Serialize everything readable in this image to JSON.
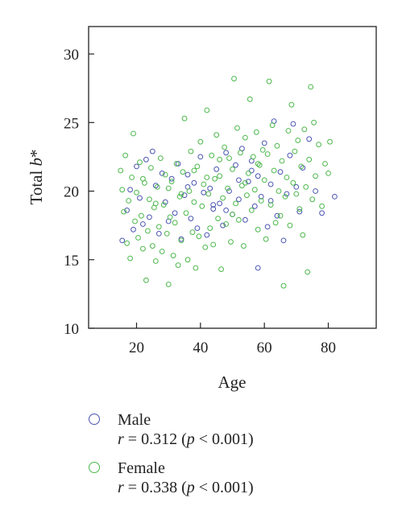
{
  "chart_data": {
    "type": "scatter",
    "xlabel": "Age",
    "ylabel": "Total b*",
    "xlim": [
      5,
      95
    ],
    "ylim": [
      10,
      32
    ],
    "xticks": [
      20,
      40,
      60,
      80
    ],
    "yticks": [
      10,
      15,
      20,
      25,
      30
    ],
    "grid": false,
    "legend_position": "bottom",
    "series": [
      {
        "name": "Male",
        "stat": "r = 0.312 (p < 0.001)",
        "color": "#4a55b0",
        "points": [
          [
            15.5,
            16.4
          ],
          [
            17,
            18.6
          ],
          [
            18,
            20.1
          ],
          [
            19,
            17.2
          ],
          [
            20,
            21.8
          ],
          [
            21,
            19.5
          ],
          [
            22,
            17.6
          ],
          [
            23,
            22.3
          ],
          [
            24,
            18.1
          ],
          [
            25,
            22.9
          ],
          [
            26,
            20.4
          ],
          [
            27,
            16.9
          ],
          [
            28,
            21.3
          ],
          [
            29,
            19.2
          ],
          [
            30,
            17.8
          ],
          [
            31,
            20.9
          ],
          [
            32,
            18.4
          ],
          [
            33,
            22.0
          ],
          [
            34,
            16.5
          ],
          [
            35,
            19.7
          ],
          [
            36,
            21.2
          ],
          [
            37,
            18.0
          ],
          [
            38,
            20.6
          ],
          [
            39,
            17.3
          ],
          [
            40,
            22.5
          ],
          [
            41,
            19.9
          ],
          [
            42,
            16.8
          ],
          [
            43,
            20.2
          ],
          [
            44,
            18.7
          ],
          [
            45,
            21.6
          ],
          [
            46,
            19.1
          ],
          [
            47,
            17.5
          ],
          [
            48,
            22.8
          ],
          [
            49,
            20.0
          ],
          [
            50,
            18.3
          ],
          [
            51,
            21.9
          ],
          [
            52,
            19.4
          ],
          [
            53,
            23.1
          ],
          [
            54,
            17.9
          ],
          [
            55,
            20.7
          ],
          [
            56,
            22.2
          ],
          [
            57,
            18.9
          ],
          [
            58,
            21.1
          ],
          [
            59,
            19.6
          ],
          [
            60,
            23.5
          ],
          [
            61,
            17.4
          ],
          [
            62,
            20.5
          ],
          [
            63,
            25.1
          ],
          [
            64,
            18.2
          ],
          [
            65,
            21.4
          ],
          [
            66,
            16.4
          ],
          [
            67,
            19.8
          ],
          [
            68,
            22.6
          ],
          [
            69,
            24.9
          ],
          [
            70,
            20.3
          ],
          [
            71,
            18.5
          ],
          [
            72,
            21.7
          ],
          [
            74,
            23.8
          ],
          [
            76,
            20.0
          ],
          [
            78,
            18.4
          ],
          [
            82,
            19.6
          ],
          [
            58,
            14.4
          ],
          [
            44,
            19.0
          ],
          [
            52,
            20.8
          ],
          [
            36,
            20.3
          ],
          [
            48,
            18.6
          ],
          [
            56,
            21.5
          ],
          [
            62,
            19.3
          ]
        ]
      },
      {
        "name": "Female",
        "stat": "r = 0.338 (p < 0.001)",
        "color": "#4cb84c",
        "points": [
          [
            15,
            21.5
          ],
          [
            15.5,
            20.1
          ],
          [
            16,
            18.5
          ],
          [
            16.5,
            22.6
          ],
          [
            17,
            16.2
          ],
          [
            17.5,
            19.3
          ],
          [
            18,
            15.1
          ],
          [
            18.5,
            21.0
          ],
          [
            19,
            24.2
          ],
          [
            19.5,
            17.8
          ],
          [
            20,
            19.9
          ],
          [
            20.5,
            16.6
          ],
          [
            21,
            22.1
          ],
          [
            21.5,
            18.2
          ],
          [
            22,
            15.8
          ],
          [
            22.5,
            20.6
          ],
          [
            23,
            13.5
          ],
          [
            23.5,
            17.1
          ],
          [
            24,
            19.4
          ],
          [
            24.5,
            21.7
          ],
          [
            25,
            16.0
          ],
          [
            25.5,
            18.8
          ],
          [
            26,
            14.9
          ],
          [
            26.5,
            20.3
          ],
          [
            27,
            17.4
          ],
          [
            27.5,
            22.4
          ],
          [
            28,
            15.6
          ],
          [
            28.5,
            19.0
          ],
          [
            29,
            21.2
          ],
          [
            29.5,
            16.9
          ],
          [
            30,
            13.2
          ],
          [
            30.5,
            18.1
          ],
          [
            31,
            20.7
          ],
          [
            31.5,
            15.3
          ],
          [
            32,
            17.7
          ],
          [
            32.5,
            22.0
          ],
          [
            33,
            14.6
          ],
          [
            33.5,
            19.6
          ],
          [
            34,
            16.4
          ],
          [
            34.5,
            21.4
          ],
          [
            35,
            25.3
          ],
          [
            35.5,
            18.4
          ],
          [
            36,
            15.0
          ],
          [
            36.5,
            20.0
          ],
          [
            37,
            22.9
          ],
          [
            37.5,
            17.0
          ],
          [
            38,
            19.2
          ],
          [
            38.5,
            14.4
          ],
          [
            39,
            21.8
          ],
          [
            39.5,
            16.7
          ],
          [
            40,
            23.6
          ],
          [
            40.5,
            18.9
          ],
          [
            41,
            20.5
          ],
          [
            41.5,
            15.9
          ],
          [
            42,
            25.9
          ],
          [
            42.5,
            19.8
          ],
          [
            43,
            17.3
          ],
          [
            43.5,
            22.6
          ],
          [
            44,
            16.1
          ],
          [
            44.5,
            20.9
          ],
          [
            45,
            24.1
          ],
          [
            45.5,
            18.0
          ],
          [
            46,
            21.1
          ],
          [
            46.5,
            14.3
          ],
          [
            47,
            19.5
          ],
          [
            47.5,
            23.2
          ],
          [
            48,
            17.6
          ],
          [
            48.5,
            20.2
          ],
          [
            49,
            22.4
          ],
          [
            49.5,
            16.3
          ],
          [
            50,
            21.6
          ],
          [
            50.5,
            28.2
          ],
          [
            51,
            19.1
          ],
          [
            51.5,
            24.6
          ],
          [
            52,
            17.9
          ],
          [
            52.5,
            22.8
          ],
          [
            53,
            20.4
          ],
          [
            53.5,
            16.0
          ],
          [
            54,
            23.9
          ],
          [
            54.5,
            19.7
          ],
          [
            55,
            21.3
          ],
          [
            55.5,
            26.7
          ],
          [
            56,
            18.6
          ],
          [
            56.5,
            22.5
          ],
          [
            57,
            20.1
          ],
          [
            57.5,
            24.3
          ],
          [
            58,
            17.2
          ],
          [
            58.5,
            21.9
          ],
          [
            59,
            19.3
          ],
          [
            59.5,
            23.0
          ],
          [
            60,
            20.8
          ],
          [
            60.5,
            16.5
          ],
          [
            61,
            22.7
          ],
          [
            61.5,
            28.0
          ],
          [
            62,
            19.0
          ],
          [
            62.5,
            24.8
          ],
          [
            63,
            21.5
          ],
          [
            63.5,
            17.7
          ],
          [
            64,
            23.3
          ],
          [
            64.5,
            20.0
          ],
          [
            65,
            18.2
          ],
          [
            65.5,
            22.2
          ],
          [
            66,
            13.1
          ],
          [
            66.5,
            19.6
          ],
          [
            67,
            21.0
          ],
          [
            67.5,
            24.4
          ],
          [
            68,
            17.5
          ],
          [
            68.5,
            26.3
          ],
          [
            69,
            20.6
          ],
          [
            69.5,
            22.9
          ],
          [
            70,
            19.8
          ],
          [
            70.5,
            23.7
          ],
          [
            71,
            18.7
          ],
          [
            71.5,
            21.8
          ],
          [
            72,
            16.8
          ],
          [
            72.5,
            24.5
          ],
          [
            73,
            20.3
          ],
          [
            73.5,
            14.1
          ],
          [
            74,
            22.3
          ],
          [
            74.5,
            27.6
          ],
          [
            75,
            19.4
          ],
          [
            75.5,
            25.0
          ],
          [
            76,
            21.1
          ],
          [
            77,
            23.4
          ],
          [
            78,
            18.9
          ],
          [
            79,
            22.0
          ],
          [
            80,
            21.3
          ],
          [
            80.5,
            23.6
          ],
          [
            42,
            21.0
          ],
          [
            46,
            22.3
          ],
          [
            50,
            18.3
          ],
          [
            54,
            20.6
          ],
          [
            58,
            22.0
          ],
          [
            34,
            19.8
          ],
          [
            38,
            21.5
          ],
          [
            30,
            20.2
          ],
          [
            26,
            19.1
          ],
          [
            22,
            20.9
          ]
        ]
      }
    ]
  }
}
